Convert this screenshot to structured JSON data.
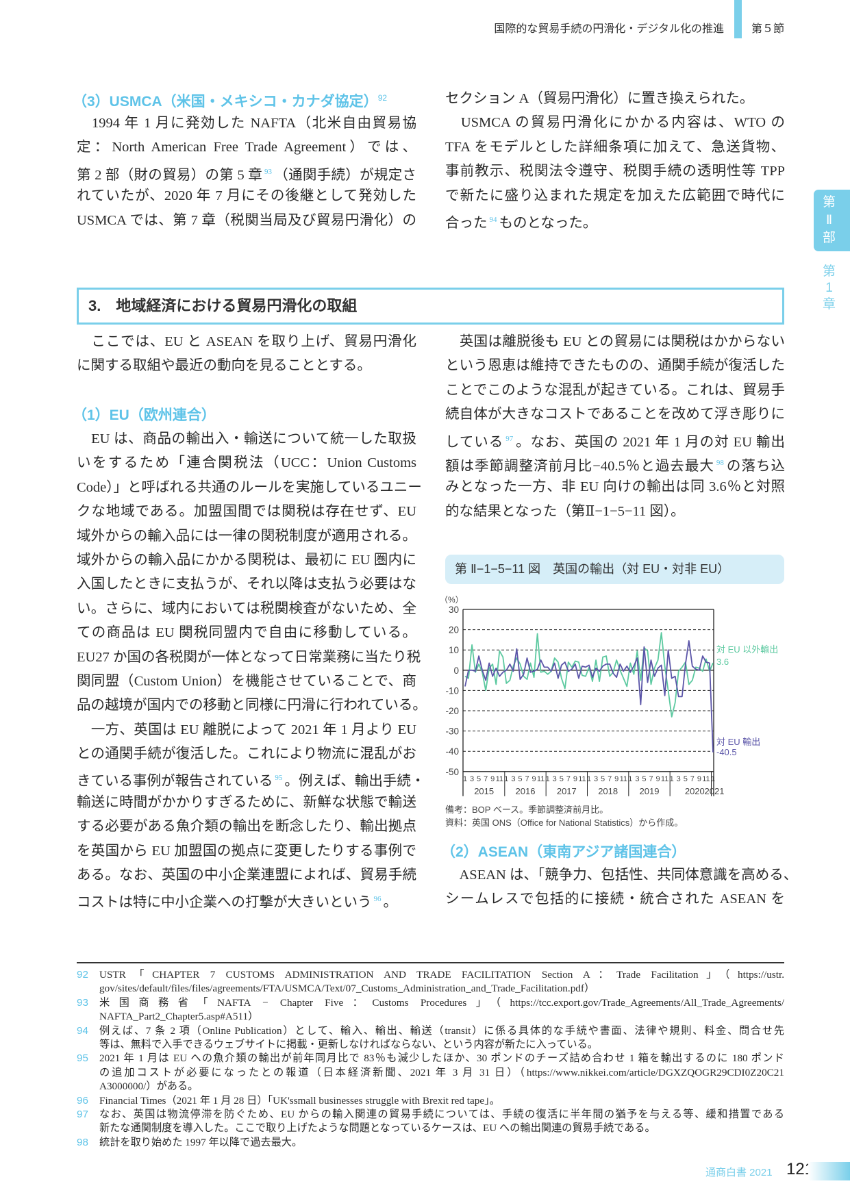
{
  "header": {
    "title": "国際的な貿易手続の円滑化・デジタル化の推進",
    "section": "第５節"
  },
  "side_tab": {
    "part": [
      "第",
      "Ⅱ",
      "部"
    ],
    "chapter": [
      "第",
      "1",
      "章"
    ]
  },
  "usmca": {
    "heading": "（3）USMCA（米国・メキシコ・カナダ協定）",
    "heading_sup": "92",
    "left": [
      {
        "a": "　1994 年 1 月に発効した NAFTA（北米自由貿易協"
      },
      {
        "a": "定：North American Free Trade Agreement）では、"
      },
      {
        "a": "第 2 部（財の貿易）の第 5 章",
        "sup": "93",
        "b": "（通関手続）が規定さ"
      },
      {
        "a": "れていたが、2020 年 7 月にその後継として発効した"
      },
      {
        "a": "USMCA では、第 7 章（税関当局及び貿易円滑化）の"
      }
    ],
    "right": [
      [
        {
          "a": "セクション A（貿易円滑化）に置き換えられた。"
        }
      ],
      [
        {
          "a": "　USMCA の貿易円滑化にかかる内容は、WTO の"
        },
        {
          "a": "TFA をモデルとした詳細条項に加えて、急送貨物、"
        },
        {
          "a": "事前教示、税関法令遵守、税関手続の透明性等 TPP"
        },
        {
          "a": "で新たに盛り込まれた規定を加えた広範囲で時代に"
        },
        {
          "a": "合った",
          "sup": "94",
          "b": "ものとなった。"
        }
      ]
    ]
  },
  "section": {
    "title": "3.　地域経済における貿易円滑化の取組"
  },
  "intro": [
    [
      {
        "a": "　ここでは、EU と ASEAN を取り上げ、貿易円滑化"
      },
      {
        "a": "に関する取組や最近の動向を見ることとする。"
      }
    ]
  ],
  "eu": {
    "heading": "（1）EU（欧州連合）",
    "left": [
      [
        {
          "a": "　EU は、商品の輸出入・輸送について統一した取扱"
        },
        {
          "a": "いをするため「連合関税法（UCC：Union Customs"
        },
        {
          "a": "Code）」と呼ばれる共通のルールを実施しているユニー"
        },
        {
          "a": "クな地域である。加盟国間では関税は存在せず、EU"
        },
        {
          "a": "域外からの輸入品には一律の関税制度が適用される。"
        },
        {
          "a": "域外からの輸入品にかかる関税は、最初に EU 圏内に"
        },
        {
          "a": "入国したときに支払うが、それ以降は支払う必要はな"
        },
        {
          "a": "い。さらに、域内においては税関検査がないため、全"
        },
        {
          "a": "ての商品は EU 関税同盟内で自由に移動している。"
        },
        {
          "a": "EU27 か国の各税関が一体となって日常業務に当たり税"
        },
        {
          "a": "関同盟（Custom Union）を機能させていることで、商"
        },
        {
          "a": "品の越境が国内での移動と同様に円滑に行われている。"
        }
      ],
      [
        {
          "a": "　一方、英国は EU 離脱によって 2021 年 1 月より EU"
        },
        {
          "a": "との通関手続が復活した。これにより物流に混乱がお"
        },
        {
          "a": "きている事例が報告されている",
          "sup": "95",
          "b": "。例えば、輸出手続・"
        },
        {
          "a": "輸送に時間がかかりすぎるために、新鮮な状態で輸送"
        },
        {
          "a": "する必要がある魚介類の輸出を断念したり、輸出拠点"
        },
        {
          "a": "を英国から EU 加盟国の拠点に変更したりする事例で"
        },
        {
          "a": "ある。なお、英国の中小企業連盟によれば、貿易手続"
        },
        {
          "a": "コストは特に中小企業への打撃が大きいという",
          "sup": "96",
          "b": "。"
        }
      ]
    ],
    "right": [
      [
        {
          "a": "　英国は離脱後も EU との貿易には関税はかからない"
        },
        {
          "a": "という恩恵は維持できたものの、通関手続が復活した"
        },
        {
          "a": "ことでこのような混乱が起きている。これは、貿易手"
        },
        {
          "a": "続自体が大きなコストであることを改めて浮き彫りに"
        },
        {
          "a": "している",
          "sup": "97",
          "b": "。なお、英国の 2021 年 1 月の対 EU 輸出"
        },
        {
          "a": "額は季節調整済前月比−40.5％と過去最大",
          "sup": "98",
          "b": "の落ち込"
        },
        {
          "a": "みとなった一方、非 EU 向けの輸出は同 3.6％と対照"
        },
        {
          "a": "的な結果となった（第Ⅱ−1−5−11 図）。"
        }
      ]
    ]
  },
  "figure": {
    "title": "第 Ⅱ−1−5−11 図　英国の輸出（対 EU・対非 EU）",
    "notes": [
      "備考：BOP ベース。季節調整済前月比。",
      "資料：英国 ONS（Office for National Statistics）から作成。"
    ]
  },
  "chart_data": {
    "type": "line",
    "title": "第 Ⅱ−1−5−11 図　英国の輸出（対 EU・対非 EU）",
    "ylabel": "（%）",
    "ylim": [
      -50,
      30
    ],
    "yticks": [
      "30",
      "20",
      "10",
      "0",
      "-10",
      "-20",
      "-30",
      "-40",
      "-50"
    ],
    "grid": "dashed horizontal",
    "x_start": "2015-01",
    "x_end": "2021-01",
    "frequency": "monthly",
    "month_ticks": [
      "1",
      "3",
      "5",
      "7",
      "9",
      "11"
    ],
    "years": [
      "2015",
      "2016",
      "2017",
      "2018",
      "2019",
      "2020",
      "2021"
    ],
    "series": [
      {
        "name": "対 EU 以外輸出",
        "end_label": "3.6",
        "color": "#5cc9a0",
        "values": [
          -3,
          -4,
          12.5,
          -1,
          3,
          -1,
          -10,
          1,
          3,
          -7,
          9.5,
          6.5,
          -6.5,
          -5,
          2,
          6,
          3,
          -3,
          -4.5,
          3.5,
          -3.5,
          18,
          -1,
          -0.5,
          -2,
          -0.5,
          6,
          4,
          -4,
          -9,
          4,
          1.5,
          4.5,
          4,
          -2.5,
          -3,
          1.5,
          -5.5,
          5,
          -5.5,
          6.5,
          7,
          -3,
          -1,
          5,
          0,
          -4,
          -8,
          3.5,
          -2,
          9.5,
          -5,
          11,
          9.5,
          -7,
          1,
          5,
          18.5,
          2,
          -10,
          -23,
          -16,
          -0.5,
          1.5,
          4,
          -7,
          -5,
          1.5,
          1,
          -0.5,
          5.5,
          -0.5,
          3.6
        ]
      },
      {
        "name": "対 EU 輸出",
        "end_label": "-40.5",
        "color": "#5b55a8",
        "values": [
          -8,
          0,
          0,
          -0.5,
          7,
          0,
          -5,
          3.5,
          -3,
          1,
          -3,
          -1,
          0,
          3,
          -0.5,
          10.5,
          -4.5,
          -2,
          6,
          -1,
          -0.5,
          0.5,
          5,
          1.5,
          1.5,
          -0.5,
          3.5,
          -4,
          2.5,
          4,
          -0.5,
          0.5,
          3,
          -4,
          2,
          1.5,
          2.5,
          -3.5,
          1,
          -0.5,
          2,
          3,
          3,
          -1.5,
          -3.5,
          3,
          -0.5,
          2,
          -1,
          2,
          6,
          -17,
          11.5,
          -6,
          5,
          -3,
          1,
          2.5,
          -12.5,
          10,
          -4,
          -3,
          -13,
          -13,
          3,
          14.5,
          2,
          0.5,
          0,
          7,
          4,
          3.5,
          -40.5
        ]
      }
    ]
  },
  "asean": {
    "heading": "（2）ASEAN（東南アジア諸国連合）",
    "lines": [
      {
        "a": "　ASEAN は、「競争力、包括性、共同体意識を高める、"
      },
      {
        "a": "シームレスで包括的に接続・統合された ASEAN を"
      }
    ]
  },
  "footnotes": [
    {
      "num": "92",
      "lines": [
        "USTR「CHAPTER 7 CUSTOMS ADMINISTRATION AND TRADE FACILITATION Section A：Trade Facilitation」（https://ustr.",
        "gov/sites/default/files/files/agreements/FTA/USMCA/Text/07_Customs_Administration_and_Trade_Facilitation.pdf）"
      ]
    },
    {
      "num": "93",
      "lines": [
        "米国商務省「NAFTA − Chapter Five：Customs Procedures」（https://tcc.export.gov/Trade_Agreements/All_Trade_Agreements/",
        "NAFTA_Part2_Chapter5.asp#A511）"
      ]
    },
    {
      "num": "94",
      "lines": [
        "例えば、7 条 2 項（Online Publication）として、輸入、輸出、輸送（transit）に係る具体的な手続や書面、法律や規則、料金、問合せ先",
        "等は、無料で入手できるウェブサイトに掲載・更新しなければならない、という内容が新たに入っている。"
      ]
    },
    {
      "num": "95",
      "lines": [
        "2021 年 1 月は EU への魚介類の輸出が前年同月比で 83％も減少したほか、30 ポンドのチーズ詰め合わせ 1 箱を輸出するのに 180 ポンド",
        "の追加コストが必要になったとの報道（日本経済新聞、2021 年 3 月 31 日）（https://www.nikkei.com/article/DGXZQOGR29CDI0Z20C21",
        "A3000000/）がある。"
      ]
    },
    {
      "num": "96",
      "lines": [
        "Financial Times（2021 年 1 月 28 日）「UK'ssmall businesses struggle with Brexit red tape」。"
      ]
    },
    {
      "num": "97",
      "lines": [
        "なお、英国は物流停滞を防ぐため、EU からの輸入関連の貿易手続については、手続の復活に半年間の猶予を与える等、緩和措置である",
        "新たな通関制度を導入した。ここで取り上げたような問題となっているケースは、EU への輸出関連の貿易手続である。"
      ]
    },
    {
      "num": "98",
      "lines": [
        "統計を取り始めた 1997 年以降で過去最大。"
      ]
    }
  ],
  "footer": {
    "publication": "通商白書 2021",
    "page": "121"
  }
}
